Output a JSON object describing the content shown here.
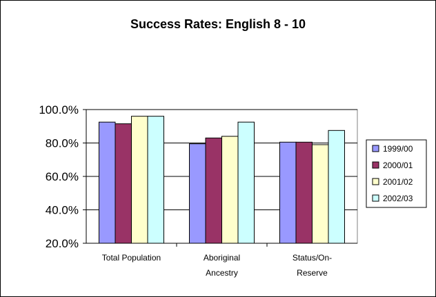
{
  "chart_data": {
    "type": "bar",
    "title": "Success Rates: English 8 - 10",
    "xlabel": "",
    "ylabel": "",
    "ylim": [
      20,
      100
    ],
    "y_ticks": [
      "20.0%",
      "40.0%",
      "60.0%",
      "80.0%",
      "100.0%"
    ],
    "y_tick_values": [
      20,
      40,
      60,
      80,
      100
    ],
    "categories": [
      [
        "Total Population"
      ],
      [
        "Aboriginal",
        "Ancestry"
      ],
      [
        "Status/On-",
        "Reserve"
      ]
    ],
    "series": [
      {
        "name": "1999/00",
        "color": "#9999ff",
        "values": [
          92.5,
          79.5,
          80.5
        ]
      },
      {
        "name": "2000/01",
        "color": "#993366",
        "values": [
          91.5,
          83,
          80.5
        ]
      },
      {
        "name": "2001/02",
        "color": "#ffffcc",
        "values": [
          96,
          84,
          79
        ]
      },
      {
        "name": "2002/03",
        "color": "#ccffff",
        "values": [
          96,
          92.5,
          87.5
        ]
      }
    ],
    "grid": true,
    "legend_position": "right"
  }
}
